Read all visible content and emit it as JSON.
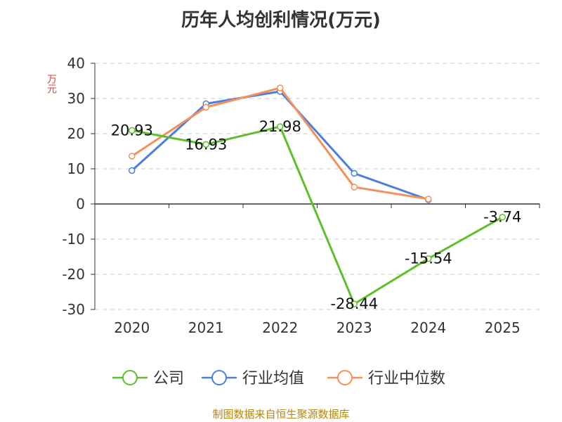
{
  "chart_data": {
    "type": "line",
    "title": "历年人均创利情况(万元)",
    "ylabel": "万元",
    "categories": [
      "2020",
      "2021",
      "2022",
      "2023",
      "2024",
      "2025"
    ],
    "ylim": [
      -30,
      40
    ],
    "yticks": [
      40,
      30,
      20,
      10,
      0,
      -10,
      -20,
      -30
    ],
    "ytick_labels": [
      "40",
      "30",
      "20",
      "10",
      "0",
      "-10",
      "-20",
      "-30"
    ],
    "grid": true,
    "legend_position": "bottom",
    "series": [
      {
        "name": "公司",
        "color": "#5dbf2a",
        "values": [
          20.93,
          16.93,
          21.98,
          -28.44,
          -15.54,
          -3.74
        ],
        "labels": [
          "20.93",
          "16.93",
          "21.98",
          "-28.44",
          "-15.54",
          "-3.74"
        ]
      },
      {
        "name": "行业均值",
        "color": "#4c7fdc",
        "values": [
          9.5,
          28.5,
          32.0,
          8.7,
          1.2,
          null
        ]
      },
      {
        "name": "行业中位数",
        "color": "#f4905a",
        "values": [
          13.6,
          27.5,
          33.0,
          4.8,
          1.4,
          null
        ]
      }
    ]
  },
  "source": "制图数据来自恒生聚源数据库"
}
